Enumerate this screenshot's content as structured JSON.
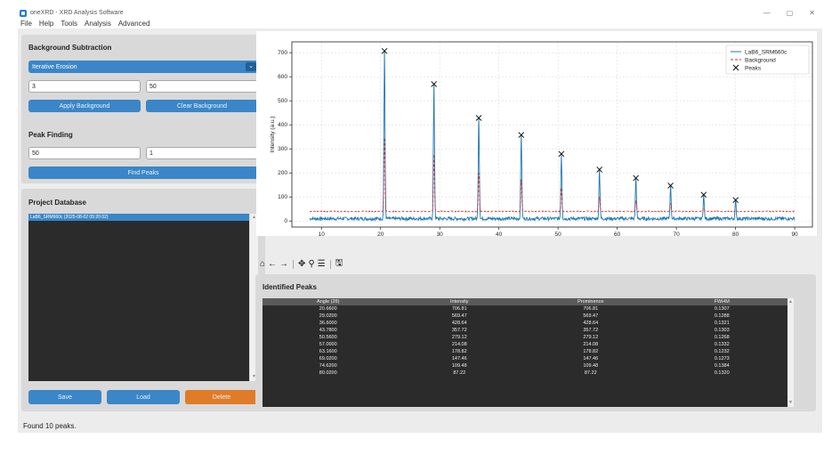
{
  "window": {
    "title": "oneXRD - XRD Analysis Software",
    "controls": {
      "minimize": "—",
      "maximize": "▢",
      "close": "✕"
    }
  },
  "menu": [
    "File",
    "Help",
    "Tools",
    "Analysis",
    "Advanced"
  ],
  "background": {
    "title": "Background Subtraction",
    "method": "Iterative Erosion",
    "param1": "3",
    "param2": "50",
    "apply_label": "Apply Background",
    "clear_label": "Clear Background"
  },
  "peak_finding": {
    "title": "Peak Finding",
    "param1": "50",
    "param2": "1",
    "find_label": "Find Peaks"
  },
  "database": {
    "title": "Project Database",
    "items": [
      "LaB6_SRM660c (2025-08-02 05:20:02)"
    ],
    "save_label": "Save",
    "load_label": "Load",
    "delete_label": "Delete"
  },
  "toolbar_icons": [
    "home-icon",
    "back-icon",
    "forward-icon",
    "pan-icon",
    "zoom-icon",
    "configure-icon",
    "save-figure-icon"
  ],
  "chart_data": {
    "type": "line",
    "title": "",
    "xlabel": "Angle (2θ)",
    "ylabel": "Intensity (a.u.)",
    "xlim": [
      5,
      93
    ],
    "ylim": [
      -25,
      745
    ],
    "xticks": [
      10,
      20,
      30,
      40,
      50,
      60,
      70,
      80,
      90
    ],
    "yticks": [
      0,
      100,
      200,
      300,
      400,
      500,
      600,
      700
    ],
    "grid": true,
    "legend_position": "top-right",
    "series": [
      {
        "name": "LaB6_SRM660c",
        "color": "#1f77b4",
        "style": "solid",
        "x_range": [
          8,
          90
        ],
        "baseline": 10,
        "peak_width": 0.13
      },
      {
        "name": "Background",
        "color": "#d62728",
        "style": "dashed",
        "x_range": [
          8,
          90
        ],
        "level": 40
      },
      {
        "name": "Peaks",
        "color": "#000000",
        "marker": "x"
      }
    ],
    "peaks": [
      {
        "x": 20.66,
        "y": 706.81
      },
      {
        "x": 29.02,
        "y": 569.47
      },
      {
        "x": 36.6,
        "y": 428.64
      },
      {
        "x": 43.78,
        "y": 357.72
      },
      {
        "x": 50.56,
        "y": 279.12
      },
      {
        "x": 57.0,
        "y": 214.08
      },
      {
        "x": 63.16,
        "y": 178.82
      },
      {
        "x": 69.02,
        "y": 147.46
      },
      {
        "x": 74.62,
        "y": 109.48
      },
      {
        "x": 80.02,
        "y": 87.22
      }
    ]
  },
  "identified": {
    "title": "Identified Peaks",
    "columns": [
      "Angle (2θ)",
      "Intensity",
      "Prominence",
      "FWHM"
    ],
    "rows": [
      [
        "20.6600",
        "706.81",
        "706.81",
        "0.1307"
      ],
      [
        "29.0200",
        "569.47",
        "569.47",
        "0.1288"
      ],
      [
        "36.6000",
        "428.64",
        "428.64",
        "0.1321"
      ],
      [
        "43.7800",
        "357.72",
        "357.72",
        "0.1303"
      ],
      [
        "50.5600",
        "279.12",
        "279.12",
        "0.1268"
      ],
      [
        "57.0000",
        "214.08",
        "214.08",
        "0.1332"
      ],
      [
        "63.1600",
        "178.82",
        "178.82",
        "0.1232"
      ],
      [
        "69.0200",
        "147.46",
        "147.46",
        "0.1273"
      ],
      [
        "74.6200",
        "109.48",
        "109.48",
        "0.1384"
      ],
      [
        "80.0200",
        "87.22",
        "87.22",
        "0.1320"
      ]
    ]
  },
  "status": "Found 10 peaks."
}
